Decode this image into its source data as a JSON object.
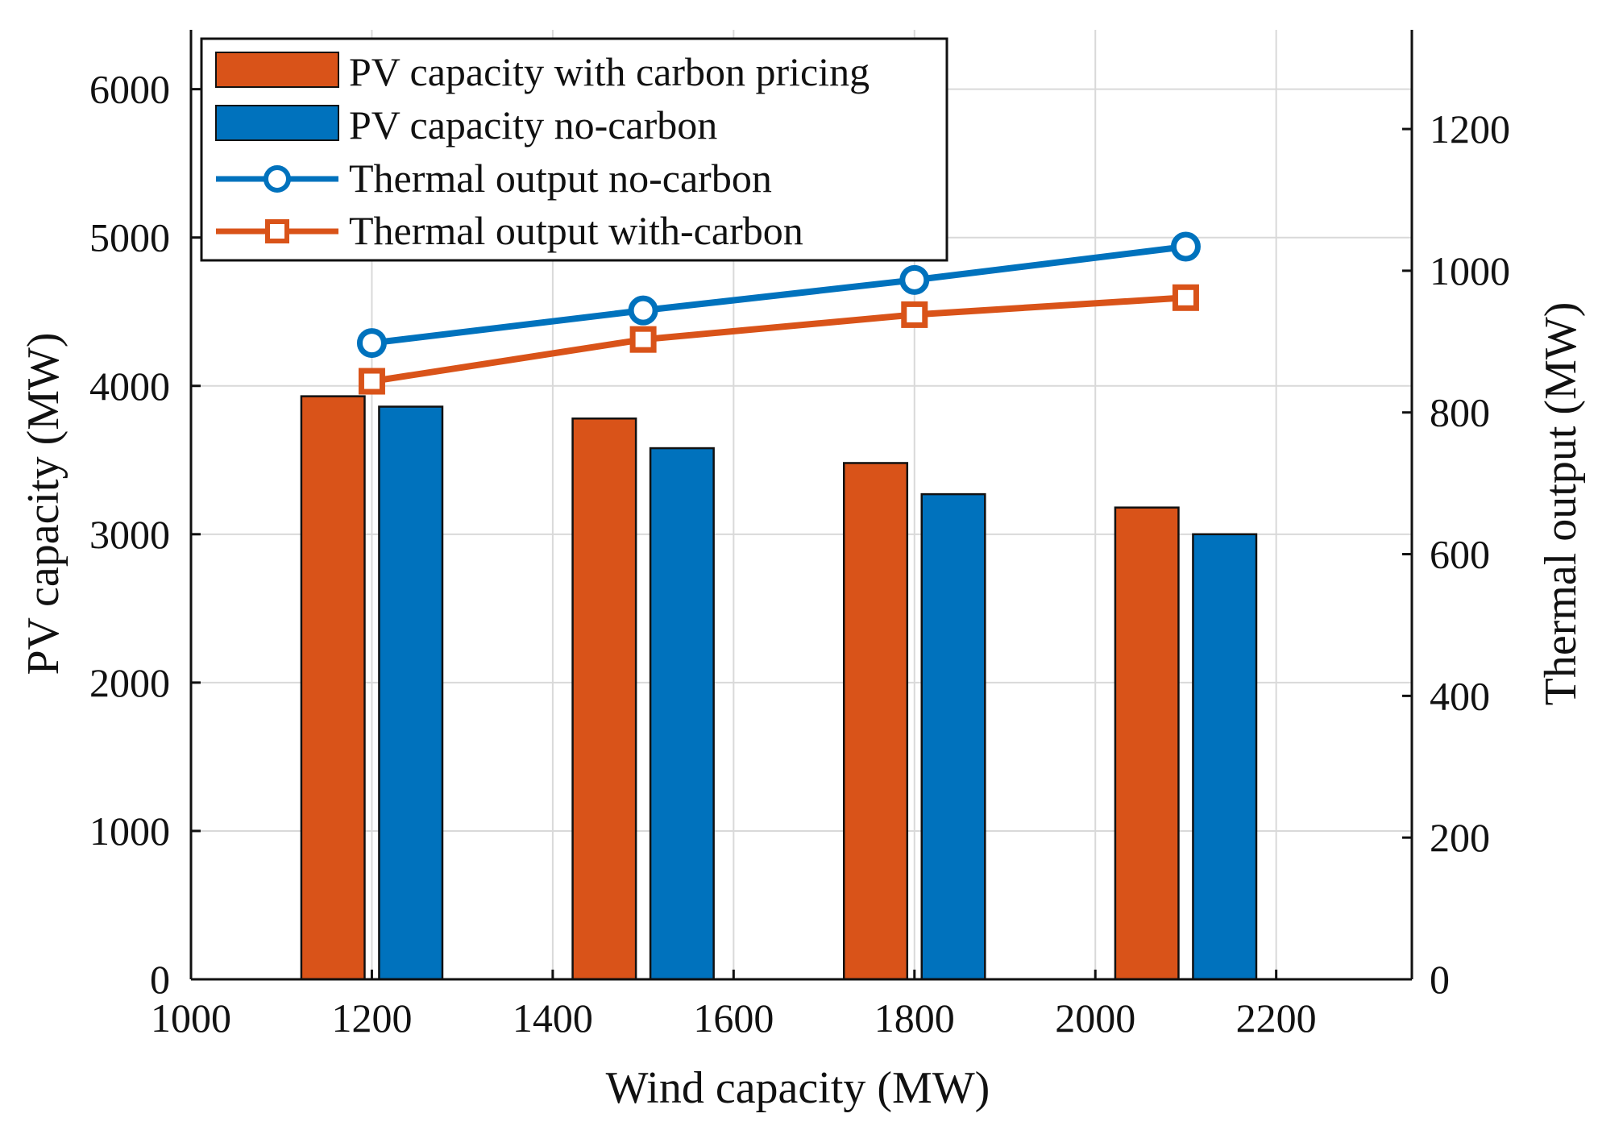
{
  "chart_data": {
    "type": "bar+line",
    "title": "",
    "xlabel": "Wind capacity (MW)",
    "ylabel": "PV capacity (MW)",
    "y2label": "Thermal output (MW)",
    "xlim": [
      1000,
      2350
    ],
    "ylim": [
      0,
      6400
    ],
    "y2lim": [
      0,
      1340
    ],
    "xticks": [
      1000,
      1200,
      1400,
      1600,
      1800,
      2000,
      2200
    ],
    "yticks": [
      0,
      1000,
      2000,
      3000,
      4000,
      5000,
      6000
    ],
    "y2ticks": [
      0,
      200,
      400,
      600,
      800,
      1000,
      1200
    ],
    "grid": true,
    "legend_position": "top-left",
    "bar_width": 70,
    "bar_offset": 43,
    "categories": [
      1200,
      1500,
      1800,
      2100
    ],
    "bar_series": [
      {
        "name": "PV capacity with carbon pricing",
        "color": "#D95319",
        "side": "left",
        "values": [
          3930,
          3780,
          3480,
          3180
        ]
      },
      {
        "name": "PV capacity no-carbon",
        "color": "#0072BD",
        "side": "right",
        "values": [
          3860,
          3580,
          3270,
          3000
        ]
      }
    ],
    "line_series": [
      {
        "name": "Thermal output no-carbon",
        "color": "#0072BD",
        "marker": "circle",
        "x": [
          1200,
          1500,
          1800,
          2100
        ],
        "values": [
          898,
          944,
          987,
          1034
        ]
      },
      {
        "name": "Thermal output with-carbon",
        "color": "#D95319",
        "marker": "square",
        "x": [
          1200,
          1500,
          1800,
          2100
        ],
        "values": [
          844,
          903,
          938,
          962
        ]
      }
    ]
  }
}
